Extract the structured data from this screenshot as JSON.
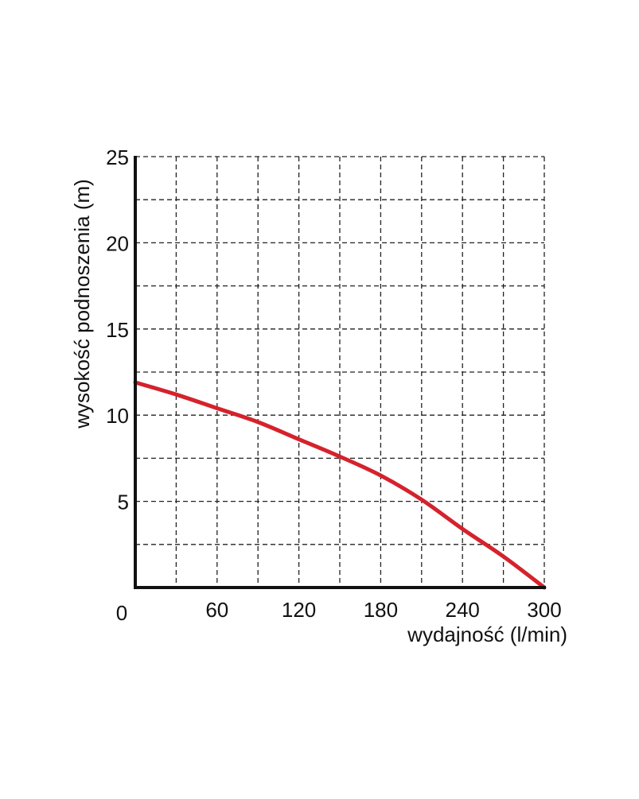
{
  "chart_data": {
    "type": "line",
    "title": "",
    "xlabel": "wydajność (l/min)",
    "ylabel": "wysokość podnoszenia (m)",
    "xlim": [
      0,
      300
    ],
    "ylim": [
      0,
      25
    ],
    "origin_label": "0",
    "x_ticks": [
      {
        "value": 60,
        "label": "60"
      },
      {
        "value": 120,
        "label": "120"
      },
      {
        "value": 180,
        "label": "180"
      },
      {
        "value": 240,
        "label": "240"
      },
      {
        "value": 300,
        "label": "300"
      }
    ],
    "y_ticks": [
      {
        "value": 5,
        "label": "5"
      },
      {
        "value": 10,
        "label": "10"
      },
      {
        "value": 15,
        "label": "15"
      },
      {
        "value": 20,
        "label": "20"
      },
      {
        "value": 25,
        "label": "25"
      }
    ],
    "x_grid_values": [
      30,
      60,
      90,
      120,
      150,
      180,
      210,
      240,
      270,
      300
    ],
    "y_grid_values": [
      2.5,
      5,
      7.5,
      10,
      12.5,
      15,
      17.5,
      20,
      22.5,
      25
    ],
    "grid": true,
    "grid_style": "dashed",
    "series": [
      {
        "color": "#d5222c",
        "x": [
          0,
          30,
          60,
          90,
          120,
          150,
          180,
          210,
          240,
          270,
          300
        ],
        "y": [
          11.9,
          11.2,
          10.4,
          9.6,
          8.6,
          7.6,
          6.5,
          5.1,
          3.4,
          1.8,
          0.0
        ]
      }
    ]
  }
}
